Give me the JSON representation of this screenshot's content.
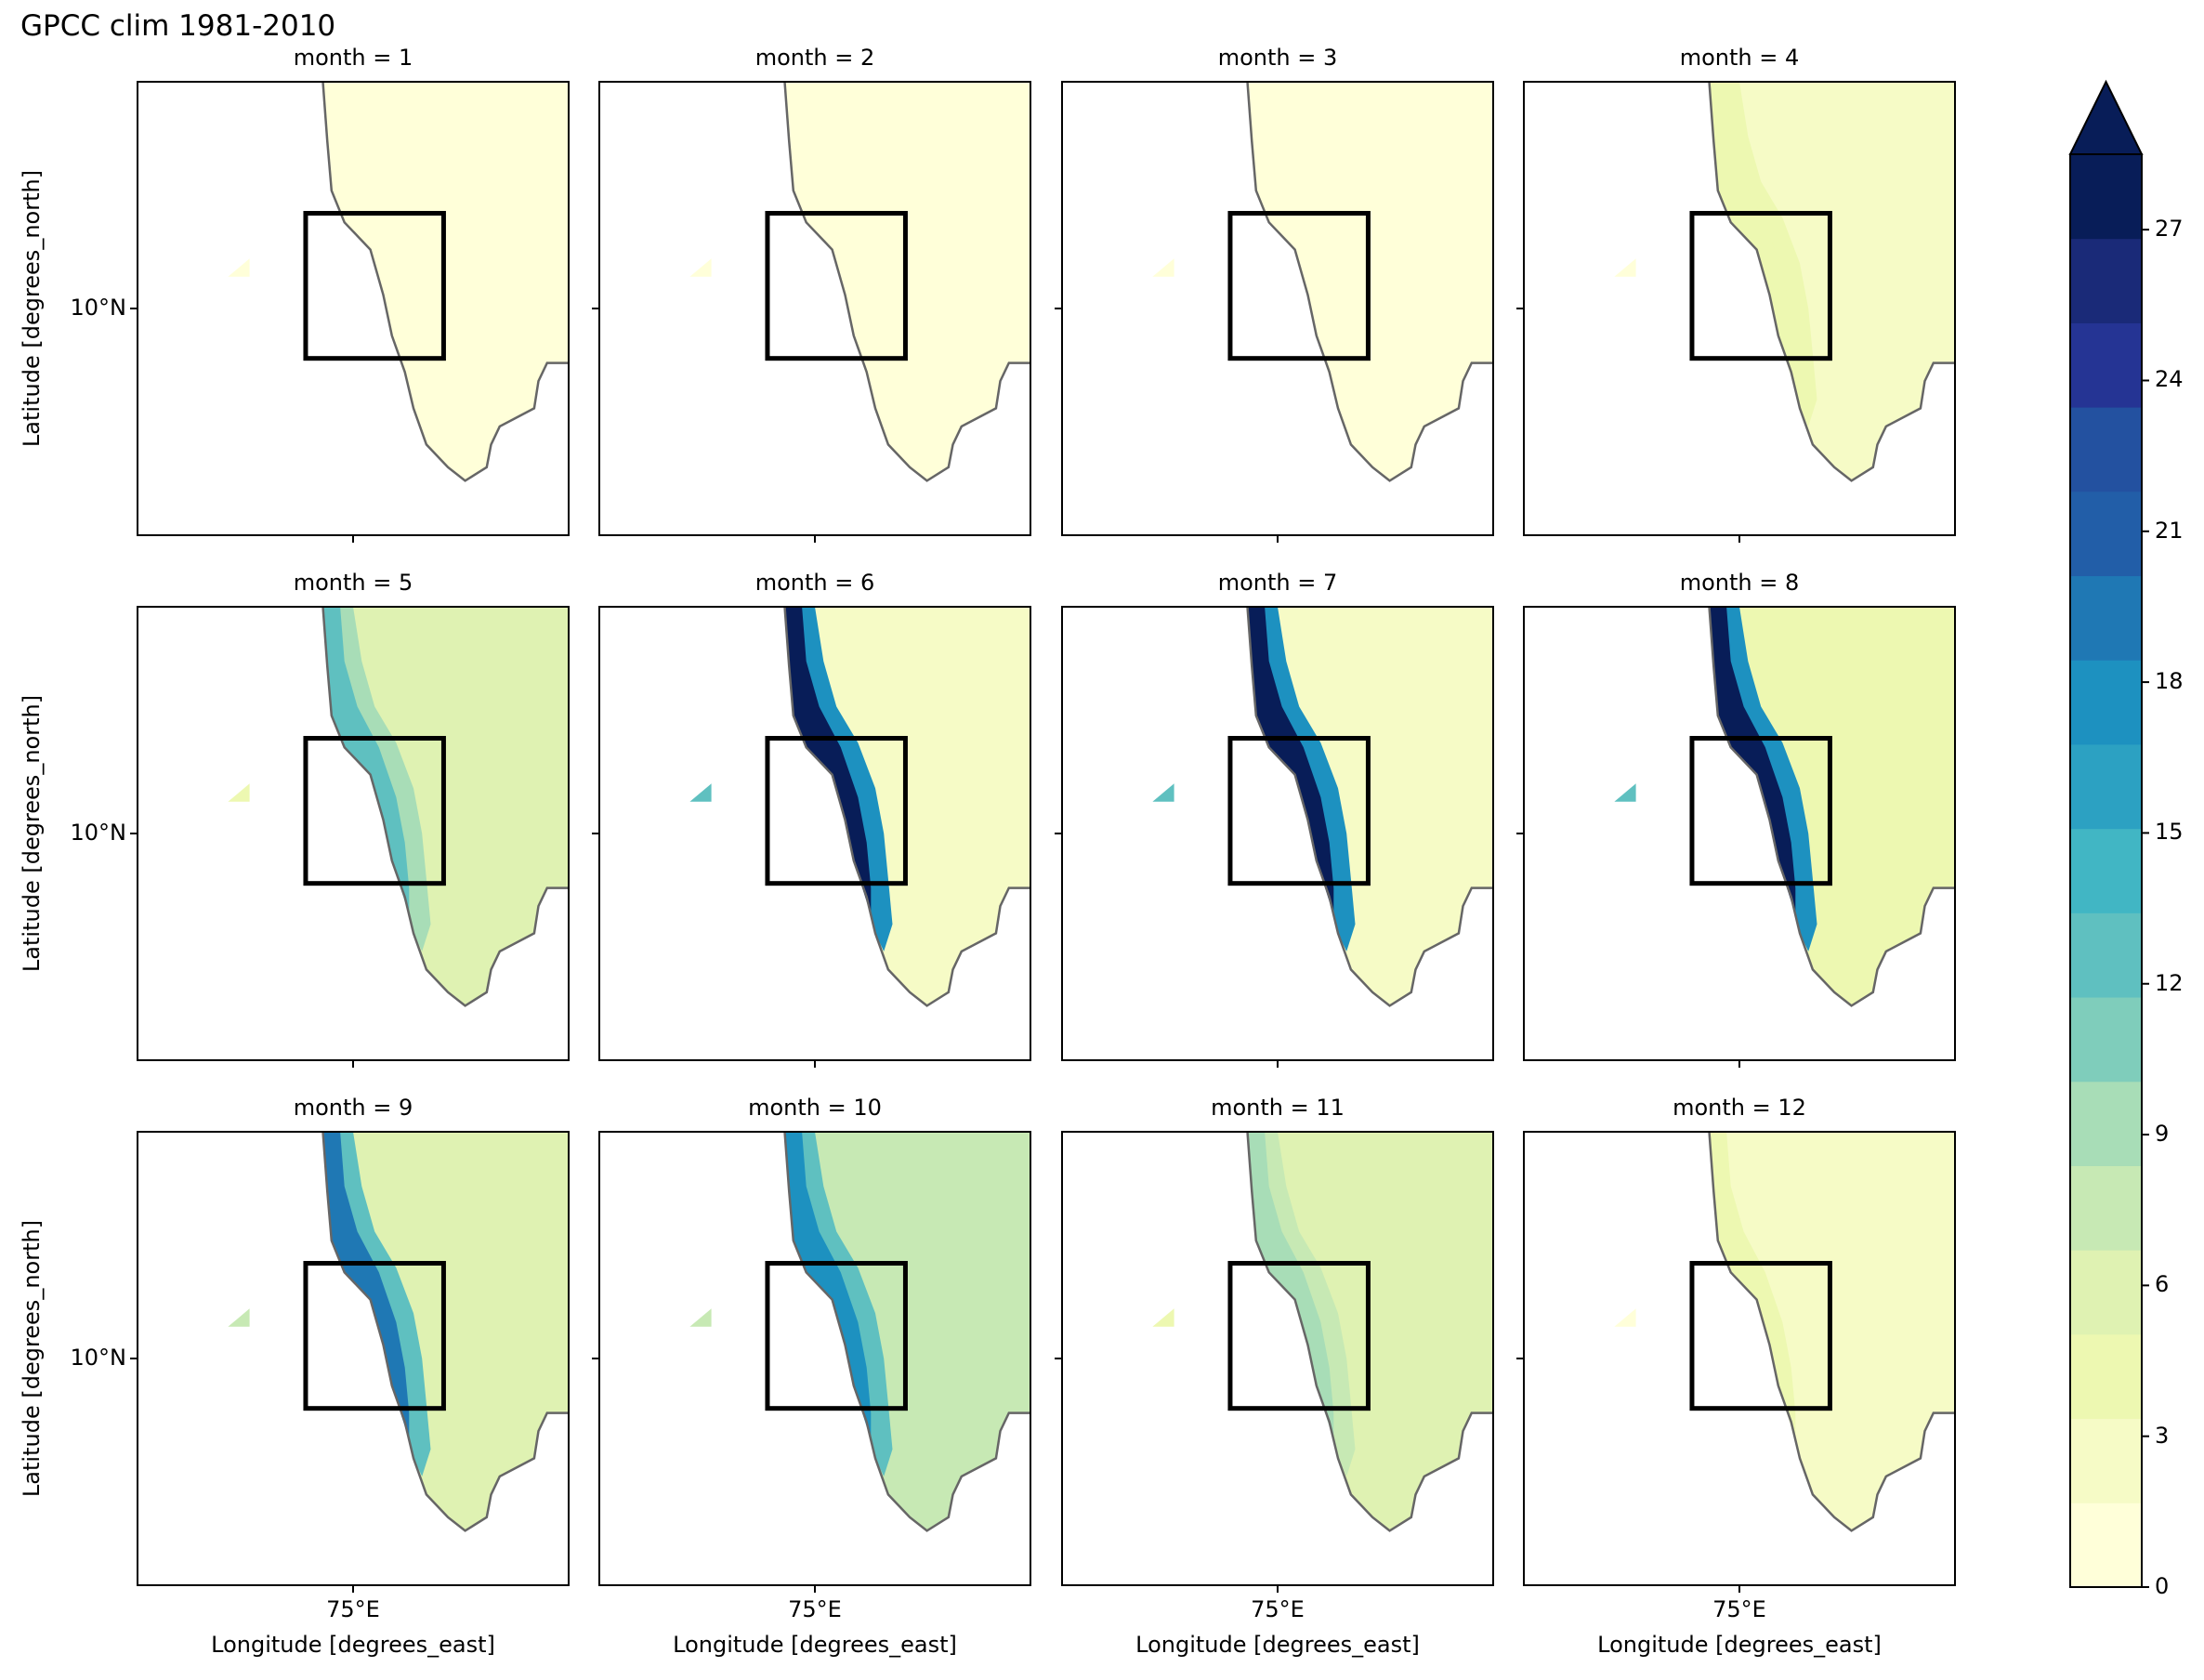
{
  "figure": {
    "title": "GPCC clim 1981-2010"
  },
  "panels": [
    {
      "title": "month = 1"
    },
    {
      "title": "month = 2"
    },
    {
      "title": "month = 3"
    },
    {
      "title": "month = 4"
    },
    {
      "title": "month = 5"
    },
    {
      "title": "month = 6"
    },
    {
      "title": "month = 7"
    },
    {
      "title": "month = 8"
    },
    {
      "title": "month = 9"
    },
    {
      "title": "month = 10"
    },
    {
      "title": "month = 11"
    },
    {
      "title": "month = 12"
    }
  ],
  "axes": {
    "ylabel": "Latitude [degrees_north]",
    "xlabel": "Longitude [degrees_east]",
    "ytick": "10°N",
    "xtick": "75°E"
  },
  "colorbar": {
    "ticks": [
      "0",
      "3",
      "6",
      "9",
      "12",
      "15",
      "18",
      "21",
      "24",
      "27"
    ],
    "colors": [
      "#ffffd9",
      "#f6fbc6",
      "#edf8b1",
      "#dff2b2",
      "#c7e9b4",
      "#a8ddb7",
      "#7fcdbb",
      "#5fc0c0",
      "#41b6c4",
      "#2ca1c2",
      "#1d91c0",
      "#1f78b4",
      "#225ea8",
      "#2351a0",
      "#253494",
      "#1a2a78",
      "#081d58"
    ],
    "extend": "max"
  },
  "chart_data": {
    "type": "heatmap",
    "title": "GPCC clim 1981-2010",
    "facet": "month",
    "months": [
      1,
      2,
      3,
      4,
      5,
      6,
      7,
      8,
      9,
      10,
      11,
      12
    ],
    "xlabel": "Longitude [degrees_east]",
    "ylabel": "Latitude [degrees_north]",
    "colorbar_range": [
      0,
      28.5
    ],
    "colorbar_step": 1.5,
    "colormap": "YlGnBu",
    "west_coast_max_by_month": [
      0.8,
      0.6,
      1.2,
      3.5,
      11,
      29,
      29,
      27,
      17,
      16,
      8,
      3
    ],
    "interior_typical_by_month": [
      0.5,
      0.5,
      0.8,
      2.5,
      4.5,
      2.5,
      2.5,
      4,
      5,
      7,
      5,
      2.5
    ],
    "region_box": "black rectangle",
    "grid": false
  }
}
